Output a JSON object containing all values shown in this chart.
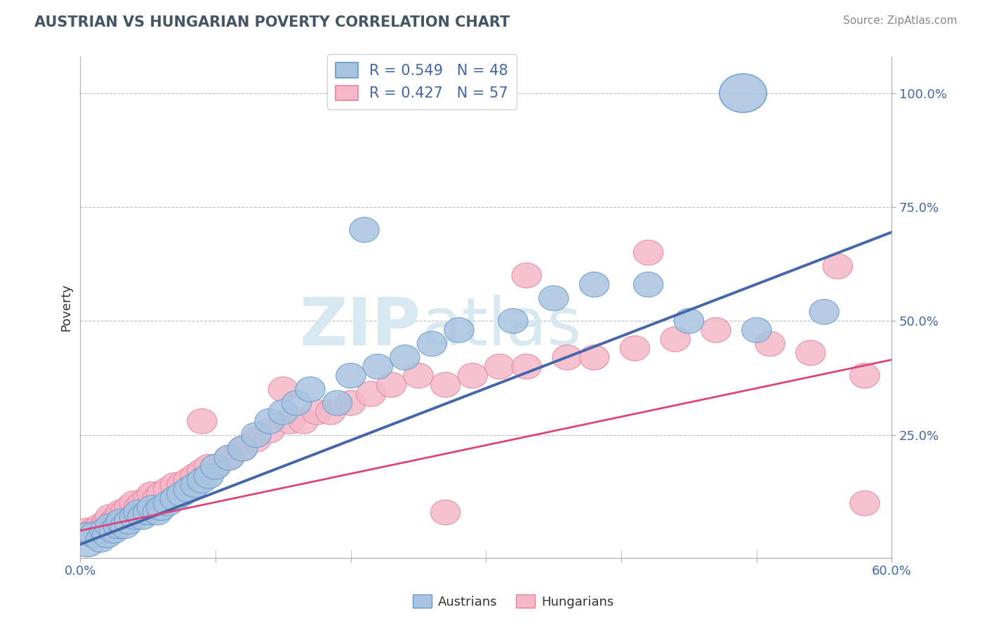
{
  "title": "AUSTRIAN VS HUNGARIAN POVERTY CORRELATION CHART",
  "source_text": "Source: ZipAtlas.com",
  "ylabel": "Poverty",
  "ytick_labels": [
    "25.0%",
    "50.0%",
    "75.0%",
    "100.0%"
  ],
  "ytick_values": [
    0.25,
    0.5,
    0.75,
    1.0
  ],
  "xlim": [
    0.0,
    0.6
  ],
  "ylim": [
    -0.02,
    1.08
  ],
  "blue_R": 0.549,
  "blue_N": 48,
  "pink_R": 0.427,
  "pink_N": 57,
  "blue_color": "#A8C4E0",
  "pink_color": "#F4B8C8",
  "blue_edge_color": "#6699CC",
  "pink_edge_color": "#E8829A",
  "blue_line_color": "#4466AA",
  "pink_line_color": "#DD4477",
  "title_color": "#445566",
  "legend_label_color": "#4466AA",
  "watermark_color": "#D8E8F0",
  "background_color": "#FFFFFF",
  "grid_color": "#BBBBCC",
  "blue_trend_x": [
    0.0,
    0.6
  ],
  "blue_trend_y": [
    0.01,
    0.695
  ],
  "pink_trend_x": [
    0.0,
    0.6
  ],
  "pink_trend_y": [
    0.04,
    0.415
  ],
  "blue_scatter_x": [
    0.005,
    0.01,
    0.015,
    0.018,
    0.02,
    0.022,
    0.025,
    0.028,
    0.03,
    0.033,
    0.036,
    0.04,
    0.043,
    0.046,
    0.05,
    0.053,
    0.057,
    0.06,
    0.065,
    0.07,
    0.075,
    0.08,
    0.085,
    0.09,
    0.095,
    0.1,
    0.11,
    0.12,
    0.13,
    0.14,
    0.15,
    0.16,
    0.17,
    0.19,
    0.2,
    0.22,
    0.24,
    0.26,
    0.28,
    0.32,
    0.35,
    0.38,
    0.42,
    0.45,
    0.5,
    0.21,
    0.55,
    0.49
  ],
  "blue_scatter_y": [
    0.02,
    0.03,
    0.02,
    0.04,
    0.03,
    0.05,
    0.04,
    0.05,
    0.06,
    0.05,
    0.06,
    0.07,
    0.08,
    0.07,
    0.08,
    0.09,
    0.08,
    0.09,
    0.1,
    0.11,
    0.12,
    0.13,
    0.14,
    0.15,
    0.16,
    0.18,
    0.2,
    0.22,
    0.25,
    0.28,
    0.3,
    0.32,
    0.35,
    0.32,
    0.38,
    0.4,
    0.42,
    0.45,
    0.48,
    0.5,
    0.55,
    0.58,
    0.58,
    0.5,
    0.48,
    0.7,
    0.52,
    1.0
  ],
  "blue_scatter_sizes": [
    400,
    200,
    150,
    150,
    150,
    150,
    150,
    150,
    150,
    150,
    150,
    150,
    150,
    150,
    150,
    150,
    150,
    150,
    150,
    150,
    150,
    150,
    150,
    150,
    150,
    150,
    150,
    150,
    150,
    150,
    150,
    150,
    150,
    150,
    150,
    150,
    150,
    150,
    150,
    150,
    150,
    150,
    150,
    150,
    150,
    150,
    150,
    700
  ],
  "pink_scatter_x": [
    0.005,
    0.01,
    0.015,
    0.018,
    0.02,
    0.022,
    0.025,
    0.028,
    0.03,
    0.033,
    0.036,
    0.04,
    0.043,
    0.046,
    0.05,
    0.053,
    0.057,
    0.06,
    0.065,
    0.07,
    0.075,
    0.08,
    0.085,
    0.09,
    0.095,
    0.1,
    0.11,
    0.12,
    0.13,
    0.14,
    0.155,
    0.165,
    0.175,
    0.185,
    0.2,
    0.215,
    0.23,
    0.25,
    0.27,
    0.29,
    0.31,
    0.33,
    0.36,
    0.38,
    0.41,
    0.44,
    0.47,
    0.51,
    0.54,
    0.56,
    0.58,
    0.33,
    0.27,
    0.58,
    0.42,
    0.15,
    0.09
  ],
  "pink_scatter_y": [
    0.04,
    0.04,
    0.05,
    0.05,
    0.06,
    0.07,
    0.06,
    0.07,
    0.08,
    0.08,
    0.09,
    0.1,
    0.09,
    0.1,
    0.11,
    0.12,
    0.11,
    0.12,
    0.13,
    0.14,
    0.14,
    0.15,
    0.16,
    0.17,
    0.18,
    0.18,
    0.2,
    0.22,
    0.24,
    0.26,
    0.28,
    0.28,
    0.3,
    0.3,
    0.32,
    0.34,
    0.36,
    0.38,
    0.36,
    0.38,
    0.4,
    0.4,
    0.42,
    0.42,
    0.44,
    0.46,
    0.48,
    0.45,
    0.43,
    0.62,
    0.1,
    0.6,
    0.08,
    0.38,
    0.65,
    0.35,
    0.28
  ],
  "pink_scatter_sizes": [
    150,
    150,
    150,
    150,
    150,
    150,
    150,
    150,
    150,
    150,
    150,
    150,
    150,
    150,
    150,
    150,
    150,
    150,
    150,
    150,
    150,
    150,
    150,
    150,
    150,
    150,
    150,
    150,
    150,
    150,
    150,
    150,
    150,
    150,
    150,
    150,
    150,
    150,
    150,
    150,
    150,
    150,
    150,
    150,
    150,
    150,
    150,
    150,
    150,
    150,
    150,
    150,
    150,
    150,
    150,
    150,
    150
  ]
}
